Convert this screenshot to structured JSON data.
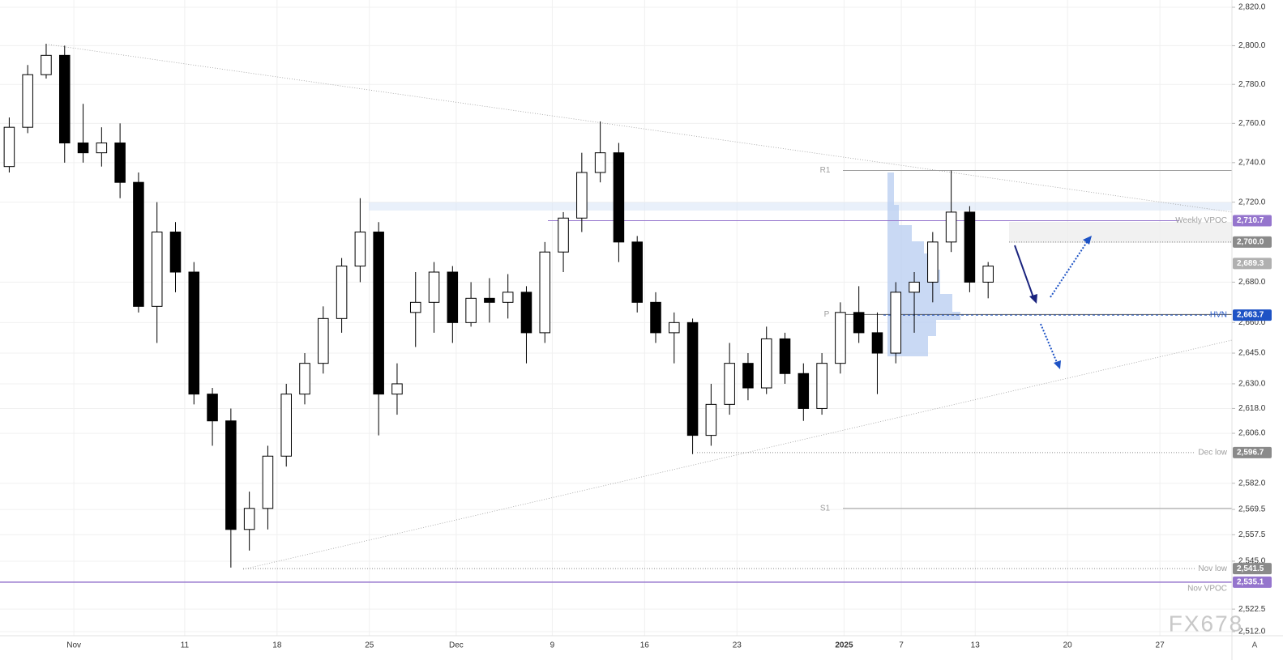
{
  "chart_data": {
    "type": "candlestick",
    "log_scale": true,
    "ylim": [
      2510.1,
      2823.8
    ],
    "yticks": [
      {
        "value": 2820,
        "label": "2,820.0"
      },
      {
        "value": 2800,
        "label": "2,800.0"
      },
      {
        "value": 2780,
        "label": "2,780.0"
      },
      {
        "value": 2760,
        "label": "2,760.0"
      },
      {
        "value": 2740,
        "label": "2,740.0"
      },
      {
        "value": 2720,
        "label": "2,720.0"
      },
      {
        "value": 2680,
        "label": "2,680.0"
      },
      {
        "value": 2660,
        "label": "2,660.0"
      },
      {
        "value": 2645,
        "label": "2,645.0"
      },
      {
        "value": 2630,
        "label": "2,630.0"
      },
      {
        "value": 2618,
        "label": "2,618.0"
      },
      {
        "value": 2606,
        "label": "2,606.0"
      },
      {
        "value": 2582,
        "label": "2,582.0"
      },
      {
        "value": 2569.5,
        "label": "2,569.5"
      },
      {
        "value": 2557.5,
        "label": "2,557.5"
      },
      {
        "value": 2545,
        "label": "2,545.0"
      },
      {
        "value": 2522.5,
        "label": "2,522.5"
      },
      {
        "value": 2512,
        "label": "2,512.0"
      }
    ],
    "xlim": [
      -4.5,
      62.2
    ],
    "xticks": [
      {
        "value": -0.5,
        "label": "Nov"
      },
      {
        "value": 5.5,
        "label": "11"
      },
      {
        "value": 10.5,
        "label": "18"
      },
      {
        "value": 15.5,
        "label": "25"
      },
      {
        "value": 20.2,
        "label": "Dec"
      },
      {
        "value": 25.4,
        "label": "9"
      },
      {
        "value": 30.4,
        "label": "16"
      },
      {
        "value": 35.4,
        "label": "23"
      },
      {
        "value": 41.2,
        "label": "2025"
      },
      {
        "value": 44.3,
        "label": "7"
      },
      {
        "value": 48.3,
        "label": "13"
      },
      {
        "value": 53.3,
        "label": "20"
      },
      {
        "value": 58.3,
        "label": "27"
      }
    ],
    "grid": true,
    "up_color": "#ffffff",
    "down_color": "#000000",
    "x": [
      -4,
      -3,
      -2,
      -1,
      0,
      1,
      2,
      3,
      4,
      5,
      6,
      7,
      8,
      9,
      10,
      11,
      12,
      13,
      14,
      15,
      16,
      17,
      18,
      19,
      20,
      21,
      22,
      23,
      24,
      25,
      26,
      27,
      28,
      29,
      30,
      31,
      32,
      33,
      34,
      35,
      36,
      37,
      38,
      39,
      40,
      41,
      42,
      43,
      44,
      45,
      46,
      47,
      48,
      49
    ],
    "open": [
      2738,
      2758,
      2785,
      2795,
      2750,
      2745,
      2750,
      2730,
      2668,
      2705,
      2685,
      2625,
      2612,
      2560,
      2570,
      2595,
      2625,
      2640,
      2662,
      2688,
      2705,
      2625,
      2665,
      2670,
      2685,
      2660,
      2672,
      2670,
      2675,
      2655,
      2695,
      2712,
      2735,
      2745,
      2700,
      2670,
      2655,
      2660,
      2605,
      2620,
      2640,
      2628,
      2652,
      2635,
      2618,
      2640,
      2665,
      2655,
      2645,
      2675,
      2680,
      2700,
      2715,
      2680
    ],
    "high": [
      2763,
      2790,
      2801,
      2800,
      2770,
      2758,
      2760,
      2735,
      2720,
      2710,
      2690,
      2628,
      2618,
      2578,
      2600,
      2630,
      2645,
      2668,
      2692,
      2722,
      2710,
      2640,
      2685,
      2690,
      2688,
      2680,
      2682,
      2684,
      2678,
      2700,
      2715,
      2745,
      2761,
      2750,
      2703,
      2675,
      2665,
      2662,
      2630,
      2650,
      2645,
      2658,
      2655,
      2640,
      2645,
      2670,
      2678,
      2665,
      2680,
      2685,
      2705,
      2736,
      2718,
      2690
    ],
    "low": [
      2735,
      2755,
      2783,
      2740,
      2740,
      2738,
      2722,
      2665,
      2650,
      2675,
      2620,
      2600,
      2542,
      2550,
      2560,
      2590,
      2620,
      2635,
      2655,
      2680,
      2605,
      2615,
      2648,
      2655,
      2650,
      2658,
      2660,
      2662,
      2640,
      2650,
      2685,
      2705,
      2730,
      2690,
      2665,
      2650,
      2640,
      2596,
      2600,
      2615,
      2622,
      2625,
      2630,
      2612,
      2615,
      2635,
      2650,
      2625,
      2640,
      2655,
      2670,
      2695,
      2675,
      2672
    ],
    "close": [
      2758,
      2785,
      2795,
      2750,
      2745,
      2750,
      2730,
      2668,
      2705,
      2685,
      2625,
      2612,
      2560,
      2570,
      2595,
      2625,
      2640,
      2662,
      2688,
      2705,
      2625,
      2630,
      2670,
      2685,
      2660,
      2672,
      2670,
      2675,
      2655,
      2695,
      2712,
      2735,
      2745,
      2700,
      2670,
      2655,
      2660,
      2605,
      2620,
      2640,
      2628,
      2652,
      2635,
      2618,
      2640,
      2665,
      2655,
      2645,
      2675,
      2680,
      2700,
      2715,
      2680,
      2688
    ],
    "levels": [
      {
        "name": "R1",
        "value": 2736,
        "color": "#9e9e9e"
      },
      {
        "name": "P",
        "value": 2664,
        "color": "#555555"
      },
      {
        "name": "S1",
        "value": 2570,
        "color": "#9e9e9e"
      },
      {
        "name": "Weekly VPOC",
        "value": 2710.7,
        "label": "2,710.7",
        "color": "#9575cd"
      },
      {
        "value": 2700,
        "label": "2,700.0",
        "color": "#8a8a8a"
      },
      {
        "value": 2689.3,
        "label": "2,689.3",
        "color": "#b0b0b0"
      },
      {
        "name": "HVN",
        "value": 2663.7,
        "label": "2,663.7",
        "color": "#1e53c5"
      },
      {
        "name": "Dec low",
        "value": 2596.7,
        "label": "2,596.7",
        "color": "#8a8a8a"
      },
      {
        "name": "Nov low",
        "value": 2541.5,
        "label": "2,541.5",
        "color": "#8a8a8a"
      },
      {
        "name": "Nov VPOC",
        "value": 2535.1,
        "label": "2,535.1",
        "color": "#9575cd"
      }
    ],
    "watermark": "FX678",
    "scale_mode": "A"
  }
}
